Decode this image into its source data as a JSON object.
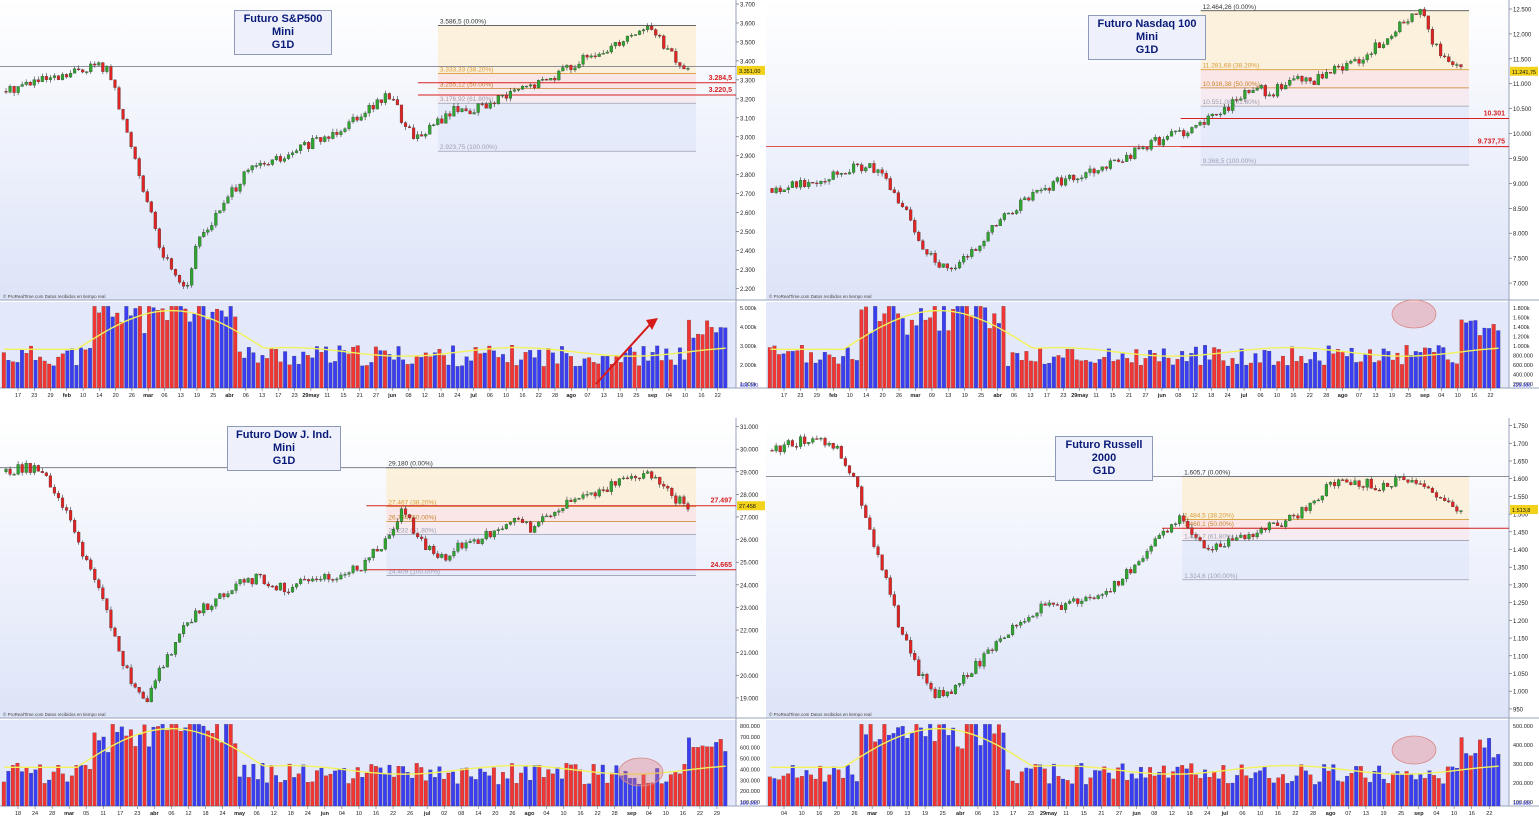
{
  "colors": {
    "up": "#2ea52e",
    "down": "#e02424",
    "vol_up": "#3a3ef0",
    "vol_down": "#f03535",
    "ma": "#f2f25a",
    "fib_fill_top": "#fcefd6",
    "fib_fill_mid": "#fbe3e3",
    "fib_fill_low": "#e3e9f9",
    "level": "#d62020"
  },
  "credit": "© ProRealTime.com  Datos recibidos en tiempo real",
  "chart_data": [
    {
      "type": "candlestick",
      "title_line1": "Futuro S&P500 Mini",
      "title_line2": "G1D",
      "ylim": [
        2150,
        3700
      ],
      "yticks": [
        "3.700",
        "3.600",
        "3.500",
        "3.400",
        "3.300",
        "3.200",
        "3.100",
        "3.000",
        "2.900",
        "2.800",
        "2.700",
        "2.600",
        "2.500",
        "2.400",
        "2.300",
        "2.200"
      ],
      "ytick_values": [
        3700,
        3600,
        3500,
        3400,
        3300,
        3200,
        3100,
        3000,
        2900,
        2800,
        2700,
        2600,
        2500,
        2400,
        2300,
        2200
      ],
      "xticks": [
        "17",
        "23",
        "29",
        "feb",
        "10",
        "14",
        "20",
        "26",
        "mar",
        "06",
        "13",
        "19",
        "25",
        "abr",
        "06",
        "13",
        "17",
        "23",
        "29may",
        "11",
        "15",
        "21",
        "27",
        "jun",
        "08",
        "12",
        "18",
        "24",
        "jul",
        "06",
        "10",
        "16",
        "22",
        "28",
        "ago",
        "07",
        "13",
        "19",
        "25",
        "sep",
        "04",
        "10",
        "16",
        "22"
      ],
      "path": [
        3240,
        3270,
        3290,
        3295,
        3300,
        3330,
        3360,
        3380,
        3350,
        3100,
        2900,
        2650,
        2400,
        2300,
        2200,
        2470,
        2550,
        2650,
        2750,
        2830,
        2850,
        2880,
        2890,
        2950,
        2970,
        3000,
        3050,
        3100,
        3150,
        3180,
        3230,
        3050,
        3000,
        3050,
        3100,
        3150,
        3140,
        3160,
        3180,
        3220,
        3250,
        3270,
        3300,
        3340,
        3380,
        3410,
        3420,
        3480,
        3520,
        3560,
        3580,
        3500,
        3400,
        3350
      ],
      "fib": [
        {
          "label": "3.586,5 (0.00%)",
          "value": 3586.5
        },
        {
          "label": "3.333,33 (38.20%)",
          "value": 3333.33
        },
        {
          "label": "3.255,12 (50.00%)",
          "value": 3255.12
        },
        {
          "label": "3.176,92 (61.80%)",
          "value": 3176.92
        },
        {
          "label": "2.923,75 (100.00%)",
          "value": 2923.75
        }
      ],
      "fib_start": 0.595,
      "levels": [
        {
          "label": "3.284,5",
          "value": 3284.5
        },
        {
          "label": "3.220,5",
          "value": 3220.5
        }
      ],
      "hline": 3370,
      "last_price": "3.351,00",
      "vol_labels": [
        "5.000k",
        "4.000k",
        "3.000k",
        "2.000k",
        "1.000k"
      ],
      "vol_highlight": "arrow",
      "vol_last_label": "898.000"
    },
    {
      "type": "candlestick",
      "title_line1": "Futuro Nasdaq 100 Mini",
      "title_line2": "G1D",
      "ylim": [
        6700,
        12600
      ],
      "yticks": [
        "12.500",
        "12.000",
        "11.500",
        "11.000",
        "10.500",
        "10.000",
        "9.500",
        "9.000",
        "8.500",
        "8.000",
        "7.500",
        "7.000"
      ],
      "ytick_values": [
        12500,
        12000,
        11500,
        11000,
        10500,
        10000,
        9500,
        9000,
        8500,
        8000,
        7500,
        7000
      ],
      "xticks": [
        "17",
        "23",
        "29",
        "feb",
        "10",
        "14",
        "20",
        "26",
        "mar",
        "09",
        "13",
        "19",
        "25",
        "abr",
        "06",
        "13",
        "17",
        "23",
        "29may",
        "11",
        "15",
        "21",
        "27",
        "jun",
        "08",
        "12",
        "18",
        "24",
        "jul",
        "06",
        "10",
        "16",
        "22",
        "28",
        "ago",
        "07",
        "13",
        "19",
        "25",
        "sep",
        "04",
        "10",
        "16",
        "22"
      ],
      "path": [
        8900,
        8950,
        9000,
        9050,
        9150,
        9250,
        9300,
        9350,
        9200,
        8800,
        8400,
        7800,
        7500,
        7200,
        7400,
        7700,
        8000,
        8300,
        8500,
        8700,
        8900,
        9000,
        9100,
        9200,
        9300,
        9400,
        9500,
        9650,
        9800,
        9900,
        10000,
        10100,
        10200,
        10400,
        10600,
        10800,
        10900,
        10800,
        11000,
        11100,
        11000,
        11200,
        11300,
        11400,
        11600,
        11800,
        12000,
        12300,
        12464,
        11800,
        11400,
        11250
      ],
      "fib": [
        {
          "label": "12.464,26 (0.00%)",
          "value": 12464.26
        },
        {
          "label": "11.281,68 (38.20%)",
          "value": 11281.68
        },
        {
          "label": "10.916,38 (50.00%)",
          "value": 10916.38
        },
        {
          "label": "10.551,08 (61.80%)",
          "value": 10551.08
        },
        {
          "label": "9.368,5 (100.00%)",
          "value": 9368.5
        }
      ],
      "fib_start": 0.585,
      "levels": [
        {
          "label": "10.301",
          "value": 10301
        },
        {
          "label": "9.737,75",
          "value": 9737.75
        }
      ],
      "hline": 9737.75,
      "last_price": "11.241,75",
      "vol_labels": [
        "1.800k",
        "1.600k",
        "1.400k",
        "1.200k",
        "1.000k",
        "800.000",
        "600.000",
        "400.000",
        "200.000"
      ],
      "vol_highlight": "circle",
      "vol_last_label": "129.000"
    },
    {
      "type": "candlestick",
      "title_line1": "Futuro Dow J. Ind. Mini",
      "title_line2": "G1D",
      "ylim": [
        18200,
        31200
      ],
      "yticks": [
        "31.000",
        "30.000",
        "29.000",
        "28.000",
        "27.000",
        "26.000",
        "25.000",
        "24.000",
        "23.000",
        "22.000",
        "21.000",
        "20.000",
        "19.000"
      ],
      "ytick_values": [
        31000,
        30000,
        29000,
        28000,
        27000,
        26000,
        25000,
        24000,
        23000,
        22000,
        21000,
        20000,
        19000
      ],
      "xticks": [
        "18",
        "24",
        "28",
        "mar",
        "05",
        "11",
        "17",
        "23",
        "abr",
        "06",
        "12",
        "18",
        "24",
        "may",
        "06",
        "12",
        "18",
        "24",
        "jun",
        "04",
        "10",
        "16",
        "22",
        "26",
        "jul",
        "02",
        "08",
        "14",
        "20",
        "26",
        "ago",
        "04",
        "10",
        "16",
        "22",
        "28",
        "sep",
        "04",
        "10",
        "16",
        "22",
        "29"
      ],
      "path": [
        29000,
        29200,
        29100,
        28500,
        27500,
        26000,
        24500,
        23000,
        21000,
        19500,
        19000,
        20500,
        21500,
        22500,
        23000,
        23500,
        24000,
        24200,
        24300,
        24000,
        23800,
        24200,
        24500,
        24300,
        24600,
        24800,
        25500,
        26000,
        27500,
        26000,
        25500,
        25200,
        25800,
        26000,
        26200,
        26500,
        26800,
        26500,
        27000,
        27500,
        27800,
        28000,
        28200,
        28500,
        28800,
        29000,
        28500,
        27800,
        27497
      ],
      "fib": [
        {
          "label": "29.180 (0.00%)",
          "value": 29180
        },
        {
          "label": "27.467 (38.20%)",
          "value": 27467
        },
        {
          "label": "26.794 (50.00%)",
          "value": 26794
        },
        {
          "label": "26.232 (61.80%)",
          "value": 26232
        },
        {
          "label": "24.409 (100.00%)",
          "value": 24409
        }
      ],
      "fib_start": 0.525,
      "levels": [
        {
          "label": "27.497",
          "value": 27497
        },
        {
          "label": "24.665",
          "value": 24665
        }
      ],
      "hline": 29180,
      "last_price": "27.458",
      "vol_labels": [
        "800.000",
        "700.000",
        "600.000",
        "500.000",
        "400.000",
        "300.000",
        "200.000",
        "100.000"
      ],
      "vol_highlight": "circle",
      "vol_last_label": "300.000"
    },
    {
      "type": "candlestick",
      "title_line1": "Futuro Russell 2000",
      "title_line2": "G1D",
      "ylim": [
        930,
        1760
      ],
      "yticks": [
        "1.750",
        "1.700",
        "1.650",
        "1.600",
        "1.550",
        "1.500",
        "1.450",
        "1.400",
        "1.350",
        "1.300",
        "1.250",
        "1.200",
        "1.150",
        "1.100",
        "1.050",
        "1.000",
        "950"
      ],
      "ytick_values": [
        1750,
        1700,
        1650,
        1600,
        1550,
        1500,
        1450,
        1400,
        1350,
        1300,
        1250,
        1200,
        1150,
        1100,
        1050,
        1000,
        950
      ],
      "xticks": [
        "04",
        "10",
        "16",
        "20",
        "26",
        "mar",
        "09",
        "13",
        "19",
        "25",
        "abr",
        "06",
        "13",
        "17",
        "23",
        "29may",
        "11",
        "15",
        "21",
        "27",
        "jun",
        "08",
        "12",
        "18",
        "24",
        "jul",
        "06",
        "10",
        "16",
        "22",
        "28",
        "ago",
        "07",
        "13",
        "19",
        "25",
        "sep",
        "04",
        "10",
        "16",
        "22"
      ],
      "path": [
        1680,
        1700,
        1705,
        1710,
        1690,
        1600,
        1450,
        1300,
        1150,
        1050,
        990,
        1000,
        1050,
        1100,
        1150,
        1200,
        1220,
        1250,
        1240,
        1260,
        1280,
        1300,
        1350,
        1400,
        1450,
        1500,
        1420,
        1400,
        1430,
        1440,
        1460,
        1470,
        1500,
        1540,
        1580,
        1600,
        1590,
        1580,
        1590,
        1600,
        1560,
        1540,
        1513
      ],
      "fib": [
        {
          "label": "1.605,7 (0.00%)",
          "value": 1605.7
        },
        {
          "label": "1.484,5 (38.20%)",
          "value": 1484.5
        },
        {
          "label": "1.460,1 (50.00%)",
          "value": 1460.1
        },
        {
          "label": "1.425,7 (61.80%)",
          "value": 1425.7
        },
        {
          "label": "1.314,6 (100.00%)",
          "value": 1314.6
        }
      ],
      "fib_start": 0.56,
      "levels": [
        {
          "label": "",
          "value": 1460.1
        }
      ],
      "hline": 1605.7,
      "last_price": "1.513,8",
      "vol_labels": [
        "500.000",
        "400.000",
        "300.000",
        "200.000",
        "100.000"
      ],
      "vol_highlight": "circle",
      "vol_last_label": "100.000"
    }
  ]
}
